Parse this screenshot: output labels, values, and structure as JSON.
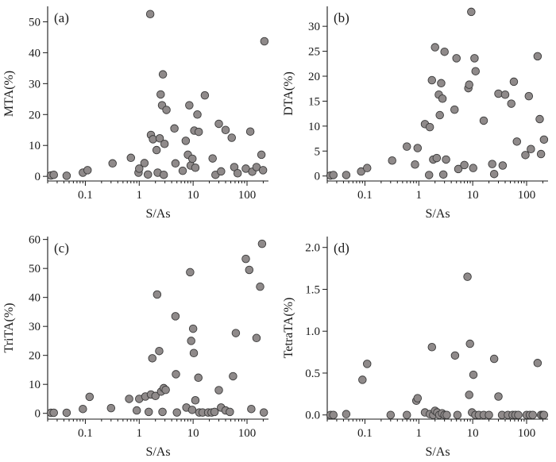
{
  "chart_data": [
    {
      "type": "scatter",
      "panel_label": "(a)",
      "xlabel": "S/As",
      "ylabel": "MTA(%)",
      "x_scale": "log",
      "xlim": [
        0.02,
        250
      ],
      "ylim": [
        -1.5,
        55
      ],
      "x_ticks": [
        0.1,
        1,
        10,
        100
      ],
      "x_tick_labels": [
        "0.1",
        "1",
        "10",
        "100"
      ],
      "y_ticks": [
        0,
        10,
        20,
        30,
        40,
        50
      ],
      "y_tick_labels": [
        "0",
        "10",
        "20",
        "30",
        "40",
        "50"
      ],
      "marker_color": "#8f8a8a",
      "points": [
        [
          0.023,
          0.3
        ],
        [
          0.026,
          0.5
        ],
        [
          0.045,
          0.2
        ],
        [
          0.09,
          1.2
        ],
        [
          0.11,
          2.0
        ],
        [
          0.32,
          4.2
        ],
        [
          0.7,
          6.0
        ],
        [
          0.97,
          1.2
        ],
        [
          1.0,
          2.5
        ],
        [
          1.25,
          4.3
        ],
        [
          1.45,
          0.6
        ],
        [
          1.6,
          52.5
        ],
        [
          1.65,
          13.4
        ],
        [
          1.8,
          12.0
        ],
        [
          2.1,
          8.5
        ],
        [
          2.2,
          1.2
        ],
        [
          2.4,
          12.3
        ],
        [
          2.5,
          26.5
        ],
        [
          2.65,
          23.0
        ],
        [
          2.75,
          33.0
        ],
        [
          2.85,
          0.5
        ],
        [
          2.95,
          10.5
        ],
        [
          3.2,
          21.5
        ],
        [
          4.5,
          15.5
        ],
        [
          4.7,
          4.2
        ],
        [
          6.4,
          1.8
        ],
        [
          7.3,
          11.5
        ],
        [
          8.0,
          7.0
        ],
        [
          8.5,
          23.0
        ],
        [
          9.0,
          3.5
        ],
        [
          9.7,
          5.7
        ],
        [
          10.5,
          14.8
        ],
        [
          11.0,
          2.8
        ],
        [
          12.0,
          20.0
        ],
        [
          12.7,
          14.4
        ],
        [
          16.5,
          26.2
        ],
        [
          23.0,
          5.8
        ],
        [
          26.0,
          0.5
        ],
        [
          30.0,
          17.0
        ],
        [
          33.0,
          1.6
        ],
        [
          40.0,
          15.0
        ],
        [
          52.0,
          12.5
        ],
        [
          58.0,
          3.0
        ],
        [
          67.0,
          1.0
        ],
        [
          95.0,
          2.5
        ],
        [
          115.0,
          14.5
        ],
        [
          125.0,
          1.5
        ],
        [
          150.0,
          3.0
        ],
        [
          185.0,
          7.0
        ],
        [
          198.0,
          2.0
        ],
        [
          210.0,
          43.7
        ]
      ]
    },
    {
      "type": "scatter",
      "panel_label": "(b)",
      "xlabel": "S/As",
      "ylabel": "DTA(%)",
      "x_scale": "log",
      "xlim": [
        0.02,
        250
      ],
      "ylim": [
        -1,
        34
      ],
      "x_ticks": [
        0.1,
        1,
        10,
        100
      ],
      "x_tick_labels": [
        "0.1",
        "1",
        "10",
        "100"
      ],
      "y_ticks": [
        0,
        5,
        10,
        15,
        20,
        25,
        30
      ],
      "y_tick_labels": [
        "0",
        "5",
        "10",
        "15",
        "20",
        "25",
        "30"
      ],
      "marker_color": "#8f8a8a",
      "points": [
        [
          0.023,
          0.1
        ],
        [
          0.026,
          0.2
        ],
        [
          0.045,
          0.2
        ],
        [
          0.085,
          0.9
        ],
        [
          0.11,
          1.6
        ],
        [
          0.32,
          3.1
        ],
        [
          0.6,
          5.9
        ],
        [
          0.85,
          2.3
        ],
        [
          0.95,
          5.6
        ],
        [
          1.3,
          10.4
        ],
        [
          1.55,
          0.2
        ],
        [
          1.6,
          9.8
        ],
        [
          1.75,
          19.2
        ],
        [
          1.85,
          3.3
        ],
        [
          2.0,
          25.8
        ],
        [
          2.15,
          3.6
        ],
        [
          2.35,
          16.3
        ],
        [
          2.45,
          12.2
        ],
        [
          2.6,
          18.6
        ],
        [
          2.75,
          15.5
        ],
        [
          2.85,
          0.3
        ],
        [
          3.0,
          24.9
        ],
        [
          3.2,
          3.3
        ],
        [
          4.6,
          13.3
        ],
        [
          5.0,
          23.6
        ],
        [
          5.4,
          1.4
        ],
        [
          7.0,
          2.2
        ],
        [
          8.3,
          17.6
        ],
        [
          8.6,
          18.3
        ],
        [
          9.4,
          32.9
        ],
        [
          10.2,
          1.6
        ],
        [
          10.8,
          23.6
        ],
        [
          11.3,
          21.0
        ],
        [
          16.0,
          11.1
        ],
        [
          23.0,
          2.4
        ],
        [
          25.0,
          0.4
        ],
        [
          30.0,
          16.5
        ],
        [
          36.0,
          2.1
        ],
        [
          40.0,
          16.3
        ],
        [
          52.0,
          14.5
        ],
        [
          58.0,
          18.9
        ],
        [
          66.0,
          6.9
        ],
        [
          95.0,
          4.2
        ],
        [
          110.0,
          16.0
        ],
        [
          120.0,
          5.4
        ],
        [
          160.0,
          24.0
        ],
        [
          175.0,
          11.4
        ],
        [
          185.0,
          4.4
        ],
        [
          210.0,
          7.3
        ]
      ]
    },
    {
      "type": "scatter",
      "panel_label": "(c)",
      "xlabel": "S/As",
      "ylabel": "TriTA(%)",
      "x_scale": "log",
      "xlim": [
        0.02,
        250
      ],
      "ylim": [
        -2,
        61
      ],
      "x_ticks": [
        0.1,
        1,
        10,
        100
      ],
      "x_tick_labels": [
        "0.1",
        "1",
        "10",
        "100"
      ],
      "y_ticks": [
        0,
        10,
        20,
        30,
        40,
        50,
        60
      ],
      "y_tick_labels": [
        "0",
        "10",
        "20",
        "30",
        "40",
        "50",
        "60"
      ],
      "marker_color": "#8f8a8a",
      "points": [
        [
          0.023,
          0.2
        ],
        [
          0.026,
          0.2
        ],
        [
          0.045,
          0.2
        ],
        [
          0.09,
          1.5
        ],
        [
          0.12,
          5.7
        ],
        [
          0.3,
          1.8
        ],
        [
          0.65,
          5.0
        ],
        [
          0.9,
          1.0
        ],
        [
          1.0,
          5.0
        ],
        [
          1.3,
          5.8
        ],
        [
          1.5,
          0.5
        ],
        [
          1.65,
          6.5
        ],
        [
          1.75,
          19.0
        ],
        [
          2.0,
          6.0
        ],
        [
          2.15,
          41.0
        ],
        [
          2.35,
          21.5
        ],
        [
          2.55,
          7.5
        ],
        [
          2.7,
          0.5
        ],
        [
          2.85,
          8.7
        ],
        [
          3.1,
          8.1
        ],
        [
          4.7,
          33.5
        ],
        [
          4.8,
          13.5
        ],
        [
          5.0,
          0.3
        ],
        [
          7.5,
          2.0
        ],
        [
          8.8,
          48.7
        ],
        [
          9.2,
          25.0
        ],
        [
          9.6,
          1.2
        ],
        [
          10.0,
          29.2
        ],
        [
          10.3,
          20.8
        ],
        [
          11.0,
          4.5
        ],
        [
          12.5,
          12.3
        ],
        [
          13.0,
          0.3
        ],
        [
          15.0,
          0.3
        ],
        [
          19.0,
          0.3
        ],
        [
          22.0,
          0.3
        ],
        [
          25.0,
          0.5
        ],
        [
          30.0,
          8.0
        ],
        [
          33.0,
          2.0
        ],
        [
          40.0,
          1.0
        ],
        [
          48.0,
          0.5
        ],
        [
          55.0,
          12.8
        ],
        [
          62.0,
          27.7
        ],
        [
          95.0,
          53.3
        ],
        [
          110.0,
          49.5
        ],
        [
          120.0,
          1.5
        ],
        [
          150.0,
          26.0
        ],
        [
          175.0,
          43.7
        ],
        [
          190.0,
          58.5
        ],
        [
          205.0,
          0.3
        ]
      ]
    },
    {
      "type": "scatter",
      "panel_label": "(d)",
      "xlabel": "S/As",
      "ylabel": "TetraTA(%)",
      "x_scale": "log",
      "xlim": [
        0.02,
        250
      ],
      "ylim": [
        -0.05,
        2.13
      ],
      "x_ticks": [
        0.1,
        1,
        10,
        100
      ],
      "x_tick_labels": [
        "0.1",
        "1",
        "10",
        "100"
      ],
      "y_ticks": [
        0,
        0.5,
        1.0,
        1.5,
        2.0
      ],
      "y_tick_labels": [
        "0.0",
        "0.5",
        "1.0",
        "1.5",
        "2.0"
      ],
      "marker_color": "#8f8a8a",
      "points": [
        [
          0.023,
          0.0
        ],
        [
          0.026,
          0.0
        ],
        [
          0.045,
          0.01
        ],
        [
          0.09,
          0.42
        ],
        [
          0.11,
          0.61
        ],
        [
          0.3,
          0.0
        ],
        [
          0.6,
          0.0
        ],
        [
          0.9,
          0.17
        ],
        [
          0.95,
          0.2
        ],
        [
          1.3,
          0.03
        ],
        [
          1.6,
          0.01
        ],
        [
          1.75,
          0.81
        ],
        [
          1.85,
          0.0
        ],
        [
          2.0,
          0.05
        ],
        [
          2.2,
          0.03
        ],
        [
          2.4,
          0.0
        ],
        [
          2.7,
          0.02
        ],
        [
          3.0,
          0.0
        ],
        [
          3.3,
          0.0
        ],
        [
          4.7,
          0.71
        ],
        [
          5.2,
          0.0
        ],
        [
          8.0,
          1.65
        ],
        [
          8.6,
          0.24
        ],
        [
          8.9,
          0.85
        ],
        [
          9.7,
          0.03
        ],
        [
          10.3,
          0.48
        ],
        [
          11.2,
          0.0
        ],
        [
          13.0,
          0.0
        ],
        [
          16.0,
          0.0
        ],
        [
          20.0,
          0.0
        ],
        [
          25.0,
          0.67
        ],
        [
          30.0,
          0.22
        ],
        [
          35.0,
          0.0
        ],
        [
          45.0,
          0.0
        ],
        [
          55.0,
          0.0
        ],
        [
          62.0,
          0.0
        ],
        [
          70.0,
          0.0
        ],
        [
          100.0,
          0.0
        ],
        [
          115.0,
          0.0
        ],
        [
          130.0,
          0.0
        ],
        [
          160.0,
          0.62
        ],
        [
          185.0,
          0.0
        ],
        [
          200.0,
          0.0
        ],
        [
          210.0,
          0.0
        ]
      ]
    }
  ]
}
